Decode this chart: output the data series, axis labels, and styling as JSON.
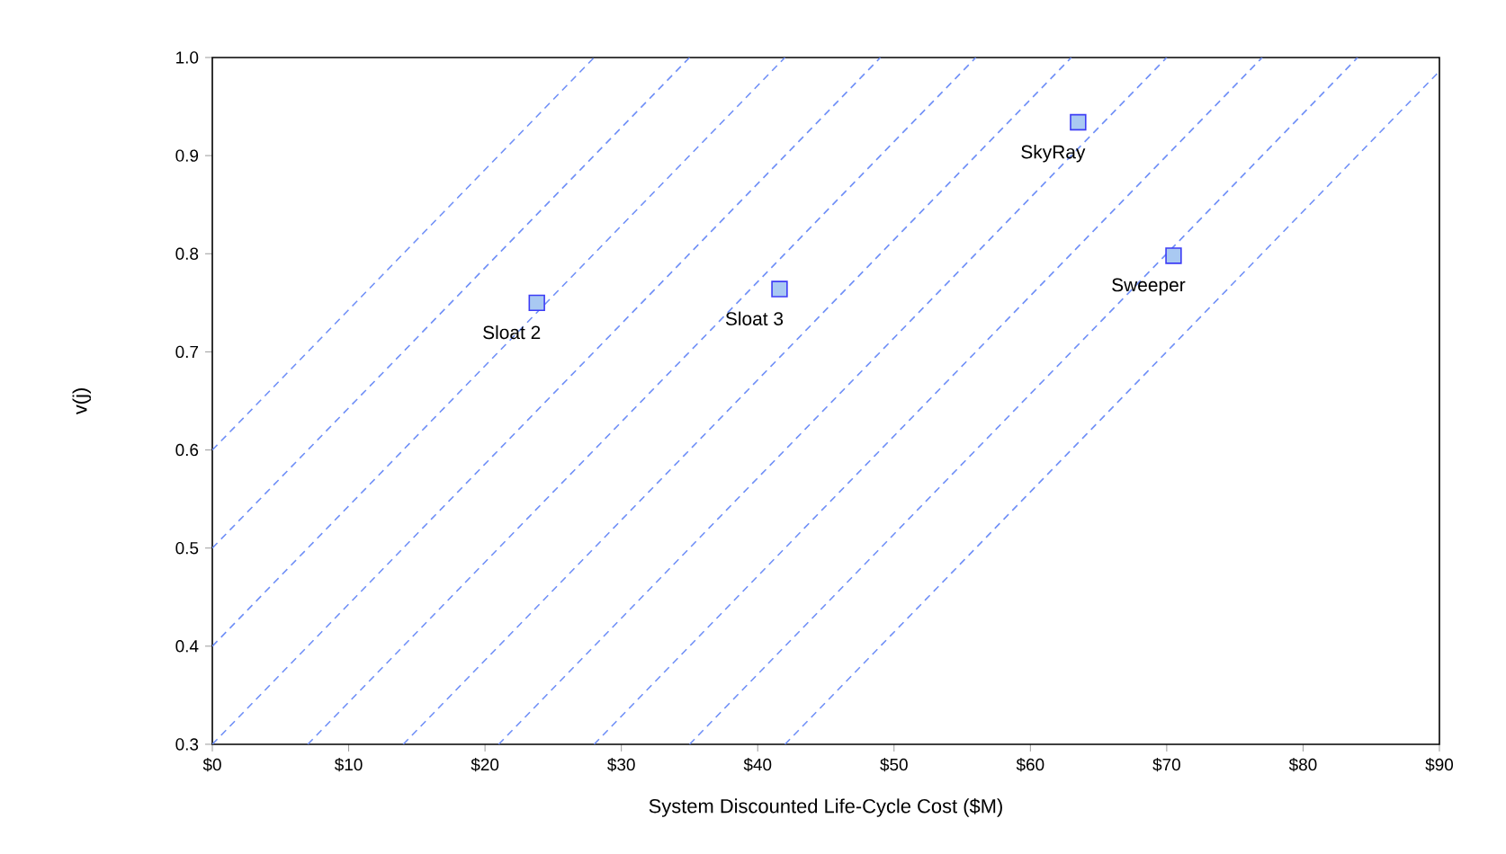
{
  "chart_data": {
    "type": "scatter",
    "xlabel": "System Discounted Life-Cycle Cost ($M)",
    "ylabel": "v(j)",
    "xlim": [
      0,
      90
    ],
    "ylim": [
      0.3,
      1.0
    ],
    "xticks": [
      {
        "value": 0,
        "label": "$0"
      },
      {
        "value": 10,
        "label": "$10"
      },
      {
        "value": 20,
        "label": "$20"
      },
      {
        "value": 30,
        "label": "$30"
      },
      {
        "value": 40,
        "label": "$40"
      },
      {
        "value": 50,
        "label": "$50"
      },
      {
        "value": 60,
        "label": "$60"
      },
      {
        "value": 70,
        "label": "$70"
      },
      {
        "value": 80,
        "label": "$80"
      },
      {
        "value": 90,
        "label": "$90"
      }
    ],
    "yticks": [
      0.3,
      0.4,
      0.5,
      0.6,
      0.7,
      0.8,
      0.9,
      {
        "value": 1.0,
        "label": "1.0"
      }
    ],
    "series": [
      {
        "marker": "square",
        "color": "#a9c9f2",
        "x": [
          23.8,
          41.6,
          63.5,
          70.5
        ],
        "values": [
          0.75,
          0.764,
          0.934,
          0.798
        ]
      },
      {
        "type": "line",
        "line_style": "dashed",
        "color": "#6f8ff7",
        "x": [
          0,
          28
        ],
        "values": [
          0.6,
          1.0
        ]
      },
      {
        "type": "line",
        "line_style": "dashed",
        "color": "#6f8ff7",
        "x": [
          0,
          35
        ],
        "values": [
          0.5,
          1.0
        ]
      },
      {
        "type": "line",
        "line_style": "dashed",
        "color": "#6f8ff7",
        "x": [
          0,
          42
        ],
        "values": [
          0.4,
          1.0
        ]
      },
      {
        "type": "line",
        "line_style": "dashed",
        "color": "#6f8ff7",
        "x": [
          0,
          49
        ],
        "values": [
          0.3,
          1.0
        ]
      },
      {
        "type": "line",
        "line_style": "dashed",
        "color": "#6f8ff7",
        "x": [
          7,
          56
        ],
        "values": [
          0.3,
          1.0
        ]
      },
      {
        "type": "line",
        "line_style": "dashed",
        "color": "#6f8ff7",
        "x": [
          14,
          63
        ],
        "values": [
          0.3,
          1.0
        ]
      },
      {
        "type": "line",
        "line_style": "dashed",
        "color": "#6f8ff7",
        "x": [
          21,
          70
        ],
        "values": [
          0.3,
          1.0
        ]
      },
      {
        "type": "line",
        "line_style": "dashed",
        "color": "#6f8ff7",
        "x": [
          28,
          77
        ],
        "values": [
          0.3,
          1.0
        ]
      },
      {
        "type": "line",
        "line_style": "dashed",
        "color": "#6f8ff7",
        "x": [
          35,
          84
        ],
        "values": [
          0.3,
          1.0
        ]
      },
      {
        "type": "line",
        "line_style": "dashed",
        "color": "#6f8ff7",
        "x": [
          42,
          90
        ],
        "values": [
          0.3,
          0.986
        ]
      }
    ],
    "annotations": [
      {
        "text": "Sloat 2",
        "x": 23.8,
        "y": 0.75
      },
      {
        "text": "Sloat 3",
        "x": 41.6,
        "y": 0.764
      },
      {
        "text": "SkyRay",
        "x": 63.5,
        "y": 0.934
      },
      {
        "text": "Sweeper",
        "x": 70.5,
        "y": 0.798
      }
    ]
  }
}
